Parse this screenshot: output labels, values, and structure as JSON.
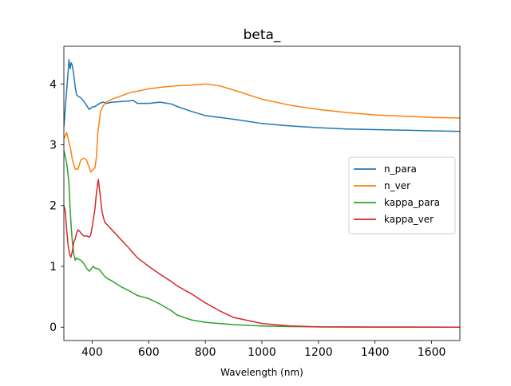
{
  "chart_data": {
    "type": "line",
    "title": "beta_",
    "xlabel": "Wavelength (nm)",
    "ylabel": "",
    "xlim": [
      300,
      1700
    ],
    "ylim": [
      -0.22,
      4.62
    ],
    "xticks": [
      400,
      600,
      800,
      1000,
      1200,
      1400,
      1600
    ],
    "yticks": [
      0,
      1,
      2,
      3,
      4
    ],
    "grid": false,
    "legend_position": "center-right",
    "series": [
      {
        "name": "n_para",
        "color": "#1f77b4",
        "x": [
          300,
          305,
          310,
          315,
          318,
          322,
          326,
          330,
          335,
          340,
          345,
          350,
          360,
          370,
          380,
          390,
          400,
          410,
          420,
          430,
          440,
          450,
          470,
          500,
          530,
          545,
          560,
          600,
          640,
          680,
          700,
          750,
          800,
          900,
          1000,
          1100,
          1200,
          1300,
          1400,
          1500,
          1600,
          1700
        ],
        "y": [
          3.3,
          3.6,
          3.9,
          4.2,
          4.4,
          4.25,
          4.35,
          4.3,
          4.15,
          3.95,
          3.82,
          3.8,
          3.77,
          3.72,
          3.65,
          3.58,
          3.62,
          3.63,
          3.66,
          3.69,
          3.7,
          3.68,
          3.7,
          3.71,
          3.72,
          3.73,
          3.68,
          3.68,
          3.7,
          3.67,
          3.63,
          3.55,
          3.48,
          3.42,
          3.35,
          3.31,
          3.28,
          3.26,
          3.25,
          3.24,
          3.23,
          3.22
        ]
      },
      {
        "name": "n_ver",
        "color": "#ff7f0e",
        "x": [
          300,
          305,
          310,
          315,
          320,
          325,
          330,
          340,
          350,
          360,
          370,
          380,
          390,
          395,
          400,
          405,
          410,
          415,
          420,
          430,
          440,
          450,
          470,
          500,
          530,
          545,
          560,
          600,
          650,
          700,
          750,
          800,
          850,
          900,
          1000,
          1100,
          1200,
          1300,
          1400,
          1500,
          1600,
          1700
        ],
        "y": [
          3.1,
          3.15,
          3.2,
          3.1,
          3.0,
          2.9,
          2.75,
          2.6,
          2.6,
          2.75,
          2.78,
          2.75,
          2.62,
          2.55,
          2.58,
          2.6,
          2.62,
          2.8,
          3.2,
          3.55,
          3.65,
          3.7,
          3.75,
          3.8,
          3.85,
          3.87,
          3.88,
          3.92,
          3.95,
          3.97,
          3.98,
          4.0,
          3.97,
          3.9,
          3.75,
          3.65,
          3.58,
          3.53,
          3.49,
          3.47,
          3.45,
          3.44
        ]
      },
      {
        "name": "kappa_para",
        "color": "#2ca02c",
        "x": [
          300,
          305,
          310,
          315,
          318,
          322,
          326,
          330,
          335,
          340,
          345,
          350,
          360,
          370,
          380,
          390,
          400,
          405,
          410,
          420,
          425,
          430,
          440,
          450,
          470,
          500,
          530,
          545,
          560,
          600,
          640,
          680,
          700,
          750,
          800,
          900,
          1000,
          1100,
          1200,
          1400,
          1700
        ],
        "y": [
          2.9,
          2.8,
          2.7,
          2.5,
          2.35,
          1.95,
          1.65,
          1.4,
          1.2,
          1.1,
          1.14,
          1.12,
          1.1,
          1.05,
          0.97,
          0.92,
          0.98,
          1.0,
          0.97,
          0.96,
          0.95,
          0.92,
          0.86,
          0.81,
          0.76,
          0.67,
          0.6,
          0.56,
          0.52,
          0.47,
          0.38,
          0.27,
          0.2,
          0.12,
          0.08,
          0.04,
          0.02,
          0.01,
          0.005,
          0.002,
          0.0
        ]
      },
      {
        "name": "kappa_ver",
        "color": "#d62728",
        "x": [
          300,
          305,
          310,
          315,
          320,
          325,
          330,
          335,
          340,
          345,
          350,
          355,
          360,
          370,
          380,
          390,
          395,
          400,
          405,
          410,
          415,
          420,
          422,
          425,
          430,
          435,
          440,
          445,
          450,
          470,
          500,
          530,
          545,
          560,
          600,
          640,
          680,
          700,
          750,
          800,
          850,
          900,
          1000,
          1100,
          1200,
          1400,
          1700
        ],
        "y": [
          2.0,
          1.9,
          1.6,
          1.35,
          1.2,
          1.15,
          1.25,
          1.4,
          1.45,
          1.55,
          1.6,
          1.58,
          1.55,
          1.5,
          1.5,
          1.48,
          1.52,
          1.65,
          1.8,
          1.95,
          2.2,
          2.38,
          2.43,
          2.3,
          2.1,
          1.9,
          1.8,
          1.72,
          1.7,
          1.6,
          1.45,
          1.3,
          1.22,
          1.14,
          1.0,
          0.87,
          0.75,
          0.68,
          0.55,
          0.4,
          0.27,
          0.16,
          0.06,
          0.02,
          0.005,
          0.002,
          0.0
        ]
      }
    ]
  }
}
